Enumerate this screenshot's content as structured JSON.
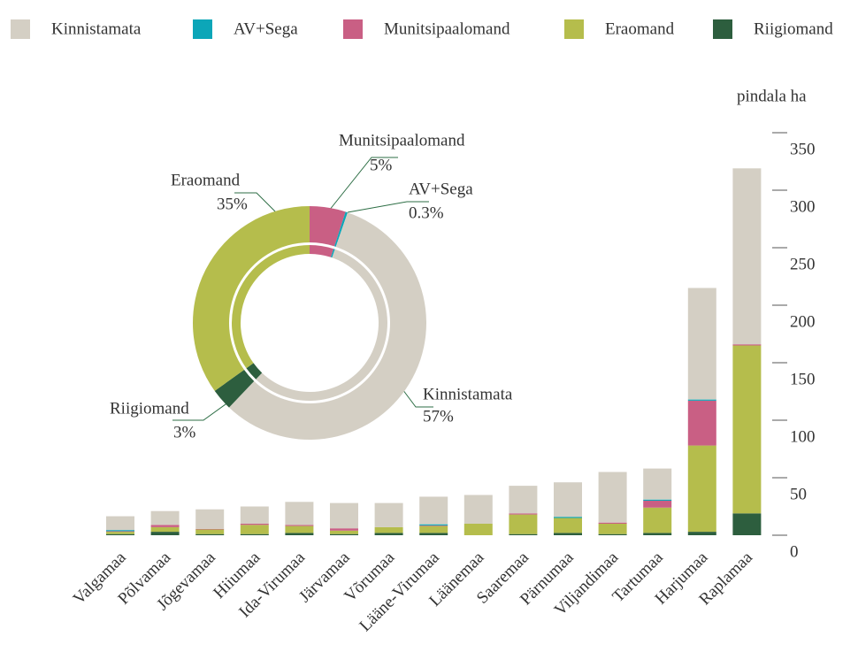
{
  "chart_data": [
    {
      "type": "bar",
      "stacked": true,
      "y_label": "pindala ha",
      "categories": [
        "Valgamaa",
        "Põlvamaa",
        "Jõgevamaa",
        "Hiiumaa",
        "Ida-Virumaa",
        "Järvamaa",
        "Võrumaa",
        "Lääne-Virumaa",
        "Läänemaa",
        "Saaremaa",
        "Pärnumaa",
        "Viljandimaa",
        "Tartumaa",
        "Harjumaa",
        "Raplamaa"
      ],
      "series": [
        {
          "name": "Kinnistamata",
          "color": "#d4cfc4",
          "values": [
            12,
            12,
            17,
            15,
            20,
            22,
            21,
            24,
            25,
            24,
            30,
            44,
            27,
            97,
            153
          ]
        },
        {
          "name": "AV+Sega",
          "color": "#0ca6b8",
          "values": [
            1,
            0,
            0,
            0,
            0,
            0,
            0,
            1,
            0,
            0,
            1,
            0,
            1,
            1,
            0
          ]
        },
        {
          "name": "Munitsipaalomand",
          "color": "#c95f84",
          "values": [
            0.5,
            2,
            0.5,
            1,
            1,
            2,
            0,
            0.5,
            0,
            1,
            0,
            1,
            6,
            39,
            1
          ]
        },
        {
          "name": "Eraomand",
          "color": "#b5bd4c",
          "values": [
            2,
            4,
            4,
            8,
            6,
            3,
            5,
            6,
            10,
            17,
            13,
            9,
            22,
            75,
            146
          ]
        },
        {
          "name": "Riigiomand",
          "color": "#2d5e3e",
          "values": [
            1,
            3,
            1,
            1,
            2,
            1,
            2,
            2,
            0,
            1,
            2,
            1,
            2,
            3,
            19
          ]
        }
      ],
      "ylim": [
        0,
        350
      ],
      "yticks": [
        0,
        50,
        100,
        150,
        200,
        250,
        300,
        350
      ],
      "legend": "top"
    },
    {
      "type": "pie",
      "donut": true,
      "categories": [
        "Munitsipaalomand",
        "AV+Sega",
        "Kinnistamata",
        "Riigiomand",
        "Eraomand"
      ],
      "values": [
        5,
        0.3,
        57,
        3,
        35
      ],
      "value_labels": [
        "5%",
        "0.3%",
        "57%",
        "3%",
        "35%"
      ],
      "colors": [
        "#c95f84",
        "#0ca6b8",
        "#d4cfc4",
        "#2d5e3e",
        "#b5bd4c"
      ]
    }
  ]
}
